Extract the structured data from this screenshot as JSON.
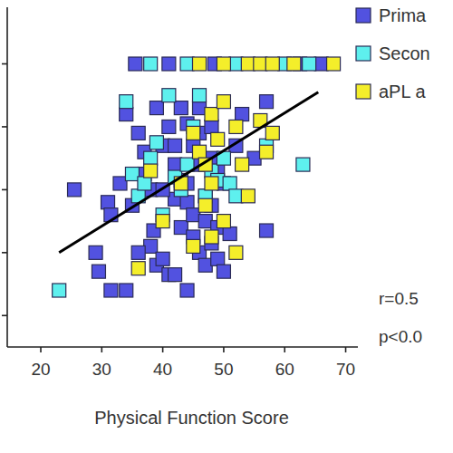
{
  "chart_data": {
    "type": "scatter",
    "x_label": "Physical Function Score",
    "xlim": [
      14.5,
      72
    ],
    "xticks": [
      20,
      30,
      40,
      50,
      60,
      70
    ],
    "ylim": [
      10,
      118
    ],
    "yticks": [
      20,
      40,
      60,
      80,
      100
    ],
    "tick_labels": "x",
    "legend": "top-right",
    "marker": "square",
    "annotations": [
      "r=0.5",
      "p<0.0"
    ],
    "fit_line": {
      "x": [
        23,
        65.5
      ],
      "values": [
        40,
        91
      ]
    },
    "series": [
      {
        "name": "Prima",
        "color": "#5252e0",
        "x": [
          35.5,
          41,
          48.5,
          62.5,
          66,
          25.5,
          29,
          29.5,
          31,
          31.5,
          31.5,
          33,
          34,
          34,
          35,
          36,
          37,
          37,
          38,
          38,
          38.5,
          39,
          39,
          40,
          40,
          41,
          41,
          42,
          42,
          42,
          42,
          43,
          43,
          43,
          44,
          44,
          44,
          45,
          45,
          45,
          46,
          46,
          46,
          46,
          47,
          47,
          47,
          48,
          48,
          48,
          49,
          49,
          49,
          50,
          50,
          51,
          52,
          53,
          57,
          57,
          55,
          44,
          40,
          36,
          48
        ],
        "values": [
          100,
          100,
          100,
          100,
          100,
          60,
          40,
          34,
          56,
          52,
          28,
          62,
          84,
          28,
          55,
          78,
          65,
          72,
          60,
          42,
          47,
          36,
          86,
          74,
          38,
          33,
          80,
          74,
          68,
          57,
          33,
          63,
          86,
          48,
          81,
          56,
          28,
          74,
          52,
          45,
          78,
          68,
          40,
          86,
          58,
          50,
          36,
          80,
          55,
          43,
          66,
          48,
          38,
          62,
          34,
          46,
          74,
          84,
          88,
          47,
          70,
          62,
          60,
          40,
          70
        ]
      },
      {
        "name": "Secon",
        "color": "#5ef0ee",
        "x": [
          38,
          44,
          52,
          60,
          64,
          23,
          34,
          35,
          36,
          38,
          39,
          40,
          41,
          42,
          43,
          44,
          45,
          46,
          47,
          48,
          49,
          50,
          51,
          52,
          63,
          57,
          37
        ],
        "values": [
          100,
          100,
          100,
          100,
          100,
          28,
          88,
          65,
          58,
          70,
          75,
          52,
          90,
          64,
          60,
          68,
          80,
          90,
          58,
          66,
          63,
          70,
          62,
          58,
          68,
          74,
          62
        ]
      },
      {
        "name": "aPL a",
        "color": "#f4ee2a",
        "x": [
          46,
          50,
          54,
          56,
          58,
          61.5,
          68,
          36,
          38,
          40,
          43,
          45,
          46,
          47,
          47,
          48,
          48,
          49,
          50,
          50,
          52,
          53,
          54,
          56,
          57,
          58,
          52,
          45,
          48
        ],
        "values": [
          100,
          100,
          100,
          100,
          100,
          100,
          100,
          35,
          66,
          50,
          62,
          78,
          72,
          68,
          55,
          84,
          62,
          76,
          50,
          88,
          80,
          68,
          58,
          82,
          72,
          78,
          40,
          42,
          45
        ]
      }
    ]
  }
}
